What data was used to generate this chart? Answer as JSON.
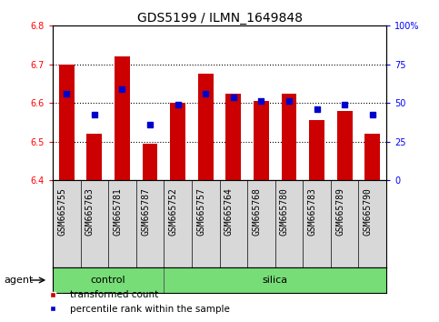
{
  "title": "GDS5199 / ILMN_1649848",
  "samples": [
    "GSM665755",
    "GSM665763",
    "GSM665781",
    "GSM665787",
    "GSM665752",
    "GSM665757",
    "GSM665764",
    "GSM665768",
    "GSM665780",
    "GSM665783",
    "GSM665789",
    "GSM665790"
  ],
  "bar_values": [
    6.7,
    6.52,
    6.72,
    6.495,
    6.6,
    6.675,
    6.625,
    6.605,
    6.625,
    6.555,
    6.58,
    6.52
  ],
  "bar_base": 6.4,
  "blue_marker_values": [
    6.625,
    6.57,
    6.635,
    6.545,
    6.595,
    6.625,
    6.615,
    6.605,
    6.605,
    6.585,
    6.595,
    6.57
  ],
  "bar_color": "#cc0000",
  "marker_color": "#0000cc",
  "ylim_left": [
    6.4,
    6.8
  ],
  "ylim_right": [
    0,
    100
  ],
  "yticks_left": [
    6.4,
    6.5,
    6.6,
    6.7,
    6.8
  ],
  "yticks_right": [
    0,
    25,
    50,
    75,
    100
  ],
  "ytick_labels_right": [
    "0",
    "25",
    "50",
    "75",
    "100%"
  ],
  "group_bar_color": "#77dd77",
  "group_divider": 4,
  "agent_label": "agent",
  "legend_items": [
    "transformed count",
    "percentile rank within the sample"
  ],
  "title_fontsize": 10,
  "tick_fontsize": 7,
  "label_fontsize": 7,
  "bg_color": "#d8d8d8"
}
